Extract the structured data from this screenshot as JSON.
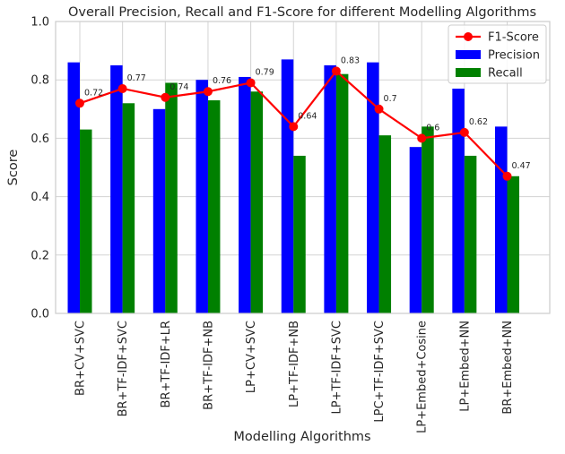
{
  "chart_data": {
    "type": "bar",
    "title": "Overall Precision, Recall and F1-Score for different Modelling Algorithms",
    "xlabel": "Modelling Algorithms",
    "ylabel": "Score",
    "ylim": [
      0,
      1.0
    ],
    "yticks": [
      "0.0",
      "0.2",
      "0.4",
      "0.6",
      "0.8",
      "1.0"
    ],
    "grid": true,
    "legend_position": "top-right",
    "categories": [
      "BR+CV+SVC",
      "BR+TF-IDF+SVC",
      "BR+TF-IDF+LR",
      "BR+TF-IDF+NB",
      "LP+CV+SVC",
      "LP+TF-IDF+NB",
      "LP+TF-IDF+SVC",
      "LPC+TF-IDF+SVC",
      "LP+Embed+Cosine",
      "LP+Embed+NN",
      "BR+Embed+NN"
    ],
    "series": [
      {
        "name": "Precision",
        "kind": "bar",
        "color": "#0000ff",
        "values": [
          0.86,
          0.85,
          0.7,
          0.8,
          0.81,
          0.87,
          0.85,
          0.86,
          0.57,
          0.77,
          0.64
        ]
      },
      {
        "name": "Recall",
        "kind": "bar",
        "color": "#008000",
        "values": [
          0.63,
          0.72,
          0.79,
          0.73,
          0.76,
          0.54,
          0.82,
          0.61,
          0.64,
          0.54,
          0.47
        ]
      },
      {
        "name": "F1-Score",
        "kind": "line",
        "color": "#ff0000",
        "values": [
          0.72,
          0.77,
          0.74,
          0.76,
          0.79,
          0.64,
          0.83,
          0.7,
          0.6,
          0.62,
          0.47
        ]
      }
    ],
    "data_labels": [
      "0.72",
      "0.77",
      "0.74",
      "0.76",
      "0.79",
      "0.64",
      "0.83",
      "0.7",
      "0.6",
      "0.62",
      "0.47"
    ]
  }
}
